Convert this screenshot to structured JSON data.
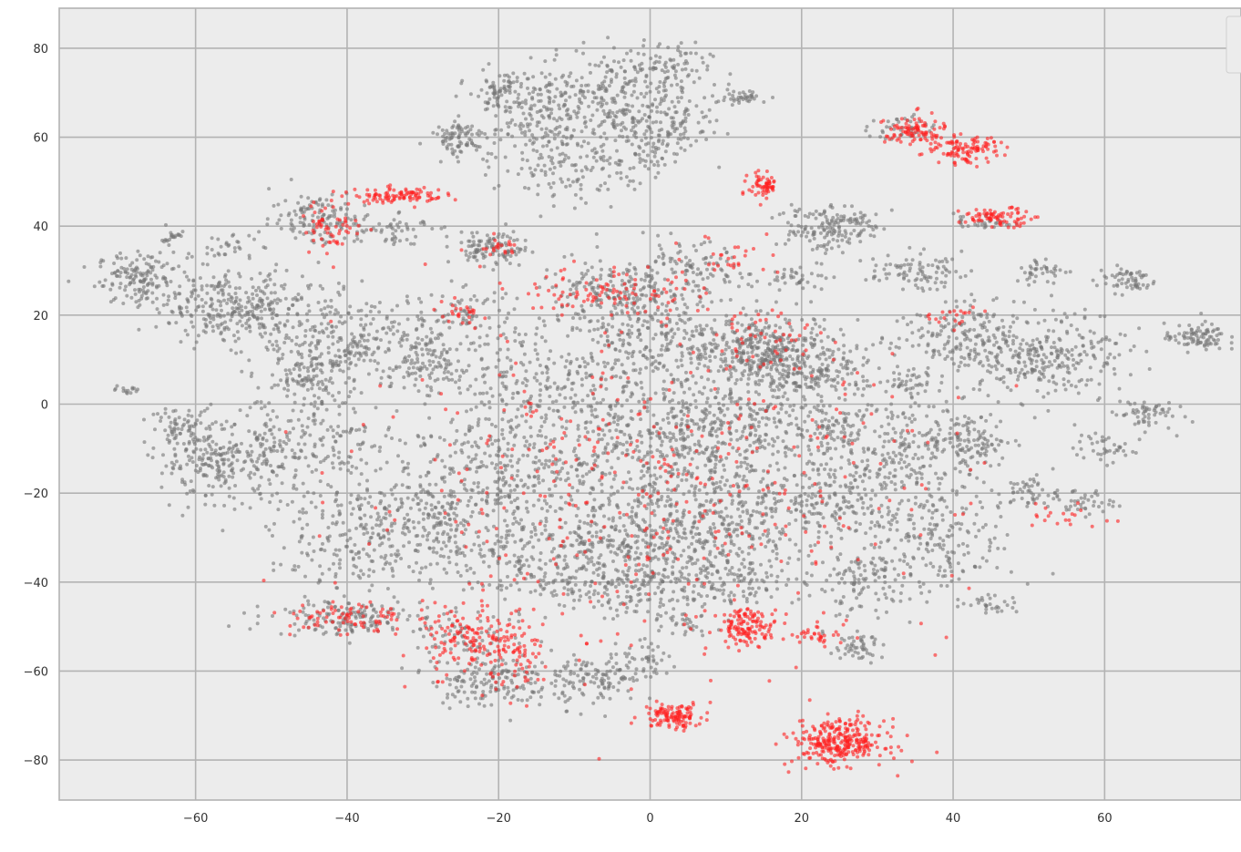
{
  "chart_data": {
    "type": "scatter",
    "title": "",
    "xlabel": "",
    "ylabel": "",
    "xlim": [
      -78,
      78
    ],
    "ylim": [
      -89,
      89
    ],
    "x_ticks": [
      -60,
      -40,
      -20,
      0,
      20,
      40,
      60
    ],
    "y_ticks": [
      -80,
      -60,
      -40,
      -20,
      0,
      20,
      40,
      60,
      80
    ],
    "grid": true,
    "legend": {
      "placement": "top-right",
      "entries": []
    },
    "point_alpha": 0.6,
    "series": [
      {
        "color": "#777777",
        "marker_radius": 2,
        "points_total": 9500,
        "clusters": [
          {
            "cx": -67,
            "cy": 28,
            "sx": 3,
            "sy": 3,
            "n": 160
          },
          {
            "cx": -55,
            "cy": 22,
            "sx": 5,
            "sy": 4,
            "n": 300
          },
          {
            "cx": -63,
            "cy": 38,
            "sx": 1,
            "sy": 1,
            "n": 20
          },
          {
            "cx": -56,
            "cy": 35,
            "sx": 2,
            "sy": 1.5,
            "n": 30
          },
          {
            "cx": -69,
            "cy": 3,
            "sx": 0.8,
            "sy": 0.5,
            "n": 15
          },
          {
            "cx": -57,
            "cy": -13,
            "sx": 4,
            "sy": 4,
            "n": 230
          },
          {
            "cx": -62,
            "cy": -5,
            "sx": 2,
            "sy": 2,
            "n": 60
          },
          {
            "cx": -44,
            "cy": 42,
            "sx": 3,
            "sy": 3,
            "n": 120
          },
          {
            "cx": -40,
            "cy": 14,
            "sx": 6,
            "sy": 5,
            "n": 280
          },
          {
            "cx": -45,
            "cy": 5,
            "sx": 3,
            "sy": 3,
            "n": 100
          },
          {
            "cx": -45,
            "cy": -10,
            "sx": 6,
            "sy": 6,
            "n": 220
          },
          {
            "cx": -38,
            "cy": -30,
            "sx": 6,
            "sy": 6,
            "n": 230
          },
          {
            "cx": -40,
            "cy": -48,
            "sx": 5,
            "sy": 2,
            "n": 150
          },
          {
            "cx": -35,
            "cy": 40,
            "sx": 3,
            "sy": 2,
            "n": 60
          },
          {
            "cx": -30,
            "cy": 10,
            "sx": 3,
            "sy": 4,
            "n": 100
          },
          {
            "cx": -27,
            "cy": -25,
            "sx": 5,
            "sy": 6,
            "n": 200
          },
          {
            "cx": -22,
            "cy": 35,
            "sx": 2,
            "sy": 2,
            "n": 60
          },
          {
            "cx": -25,
            "cy": 20,
            "sx": 3,
            "sy": 3,
            "n": 60
          },
          {
            "cx": -25,
            "cy": 60,
            "sx": 2,
            "sy": 2,
            "n": 90
          },
          {
            "cx": -20,
            "cy": 70,
            "sx": 2,
            "sy": 2,
            "n": 70
          },
          {
            "cx": -15,
            "cy": 65,
            "sx": 3,
            "sy": 5,
            "n": 140
          },
          {
            "cx": -10,
            "cy": 55,
            "sx": 5,
            "sy": 5,
            "n": 160
          },
          {
            "cx": -5,
            "cy": 70,
            "sx": 5,
            "sy": 5,
            "n": 220
          },
          {
            "cx": 0,
            "cy": 60,
            "sx": 3,
            "sy": 5,
            "n": 120
          },
          {
            "cx": 2,
            "cy": 75,
            "sx": 3,
            "sy": 3,
            "n": 80
          },
          {
            "cx": 5,
            "cy": 62,
            "sx": 2,
            "sy": 3,
            "n": 40
          },
          {
            "cx": 12,
            "cy": 69,
            "sx": 2,
            "sy": 0.8,
            "n": 40
          },
          {
            "cx": -20,
            "cy": 35,
            "sx": 2,
            "sy": 2,
            "n": 50
          },
          {
            "cx": -15,
            "cy": 5,
            "sx": 8,
            "sy": 8,
            "n": 300
          },
          {
            "cx": -20,
            "cy": -15,
            "sx": 6,
            "sy": 6,
            "n": 230
          },
          {
            "cx": -15,
            "cy": -35,
            "sx": 7,
            "sy": 6,
            "n": 270
          },
          {
            "cx": -21,
            "cy": -62,
            "sx": 4,
            "sy": 3,
            "n": 160
          },
          {
            "cx": -25,
            "cy": -52,
            "sx": 3,
            "sy": 3,
            "n": 60
          },
          {
            "cx": -7,
            "cy": -62,
            "sx": 3,
            "sy": 3,
            "n": 120
          },
          {
            "cx": 0,
            "cy": -58,
            "sx": 2,
            "sy": 2,
            "n": 40
          },
          {
            "cx": -5,
            "cy": 25,
            "sx": 5,
            "sy": 4,
            "n": 180
          },
          {
            "cx": 0,
            "cy": 15,
            "sx": 6,
            "sy": 6,
            "n": 250
          },
          {
            "cx": 0,
            "cy": -10,
            "sx": 7,
            "sy": 7,
            "n": 350
          },
          {
            "cx": 0,
            "cy": -30,
            "sx": 7,
            "sy": 6,
            "n": 350
          },
          {
            "cx": -3,
            "cy": -42,
            "sx": 4,
            "sy": 3,
            "n": 100
          },
          {
            "cx": 5,
            "cy": 30,
            "sx": 4,
            "sy": 3,
            "n": 100
          },
          {
            "cx": 15,
            "cy": 12,
            "sx": 5,
            "sy": 4,
            "n": 380
          },
          {
            "cx": 22,
            "cy": 7,
            "sx": 4,
            "sy": 3,
            "n": 160
          },
          {
            "cx": 10,
            "cy": -5,
            "sx": 6,
            "sy": 6,
            "n": 250
          },
          {
            "cx": 12,
            "cy": -25,
            "sx": 7,
            "sy": 6,
            "n": 300
          },
          {
            "cx": 10,
            "cy": -40,
            "sx": 5,
            "sy": 3,
            "n": 120
          },
          {
            "cx": 5,
            "cy": -49,
            "sx": 1.5,
            "sy": 1.5,
            "n": 30
          },
          {
            "cx": 22,
            "cy": 40,
            "sx": 3,
            "sy": 3,
            "n": 120
          },
          {
            "cx": 27,
            "cy": 40,
            "sx": 2,
            "sy": 2,
            "n": 40
          },
          {
            "cx": 20,
            "cy": 28,
            "sx": 2,
            "sy": 2,
            "n": 40
          },
          {
            "cx": 25,
            "cy": -5,
            "sx": 5,
            "sy": 4,
            "n": 150
          },
          {
            "cx": 25,
            "cy": -20,
            "sx": 5,
            "sy": 5,
            "n": 180
          },
          {
            "cx": 28,
            "cy": -40,
            "sx": 4,
            "sy": 4,
            "n": 120
          },
          {
            "cx": 27,
            "cy": -55,
            "sx": 2,
            "sy": 1.5,
            "n": 50
          },
          {
            "cx": 35,
            "cy": 30,
            "sx": 3,
            "sy": 2,
            "n": 90
          },
          {
            "cx": 33,
            "cy": 62,
            "sx": 2,
            "sy": 1.5,
            "n": 40
          },
          {
            "cx": 35,
            "cy": 5,
            "sx": 2,
            "sy": 1.5,
            "n": 40
          },
          {
            "cx": 35,
            "cy": -10,
            "sx": 5,
            "sy": 5,
            "n": 160
          },
          {
            "cx": 38,
            "cy": -30,
            "sx": 5,
            "sy": 6,
            "n": 200
          },
          {
            "cx": 40,
            "cy": 15,
            "sx": 4,
            "sy": 4,
            "n": 150
          },
          {
            "cx": 42,
            "cy": -8,
            "sx": 3,
            "sy": 3,
            "n": 100
          },
          {
            "cx": 48,
            "cy": 10,
            "sx": 4,
            "sy": 4,
            "n": 150
          },
          {
            "cx": 52,
            "cy": 30,
            "sx": 2,
            "sy": 1.5,
            "n": 40
          },
          {
            "cx": 55,
            "cy": 12,
            "sx": 4,
            "sy": 5,
            "n": 160
          },
          {
            "cx": 50,
            "cy": -20,
            "sx": 2,
            "sy": 2,
            "n": 50
          },
          {
            "cx": 57,
            "cy": -22,
            "sx": 2,
            "sy": 1.5,
            "n": 40
          },
          {
            "cx": 60,
            "cy": -10,
            "sx": 2,
            "sy": 1.5,
            "n": 40
          },
          {
            "cx": 65,
            "cy": -2,
            "sx": 2,
            "sy": 2,
            "n": 60
          },
          {
            "cx": 63,
            "cy": 28,
            "sx": 2,
            "sy": 1.5,
            "n": 60
          },
          {
            "cx": 72,
            "cy": 15,
            "sx": 2,
            "sy": 1.5,
            "n": 90
          },
          {
            "cx": 44,
            "cy": 41,
            "sx": 2,
            "sy": 1,
            "n": 30
          },
          {
            "cx": 45,
            "cy": -45,
            "sx": 2,
            "sy": 1,
            "n": 30
          }
        ]
      },
      {
        "color": "#ff1f1f",
        "marker_radius": 2,
        "points_total": 2100,
        "clusters": [
          {
            "cx": -42,
            "cy": 40,
            "sx": 2,
            "sy": 3,
            "n": 60
          },
          {
            "cx": -33,
            "cy": 47,
            "sx": 3,
            "sy": 0.9,
            "n": 100
          },
          {
            "cx": -40,
            "cy": -48,
            "sx": 4,
            "sy": 2,
            "n": 80
          },
          {
            "cx": -24,
            "cy": -53,
            "sx": 3,
            "sy": 4,
            "n": 130
          },
          {
            "cx": -17,
            "cy": -57,
            "sx": 2,
            "sy": 4,
            "n": 70
          },
          {
            "cx": -20,
            "cy": 35,
            "sx": 1.5,
            "sy": 1,
            "n": 20
          },
          {
            "cx": -25,
            "cy": 20,
            "sx": 2,
            "sy": 1.5,
            "n": 25
          },
          {
            "cx": 3,
            "cy": -70,
            "sx": 2,
            "sy": 1.5,
            "n": 120
          },
          {
            "cx": 25,
            "cy": -76,
            "sx": 3,
            "sy": 2.5,
            "n": 300
          },
          {
            "cx": 15,
            "cy": 49,
            "sx": 1,
            "sy": 1.5,
            "n": 60
          },
          {
            "cx": 35,
            "cy": 61,
            "sx": 2,
            "sy": 2,
            "n": 100
          },
          {
            "cx": 42,
            "cy": 57,
            "sx": 2,
            "sy": 1.5,
            "n": 100
          },
          {
            "cx": 46,
            "cy": 42,
            "sx": 2.5,
            "sy": 1,
            "n": 80
          },
          {
            "cx": 13,
            "cy": -50,
            "sx": 2,
            "sy": 2,
            "n": 130
          },
          {
            "cx": 22,
            "cy": -52,
            "sx": 1.5,
            "sy": 1,
            "n": 30
          },
          {
            "cx": 55,
            "cy": -25,
            "sx": 3,
            "sy": 1.5,
            "n": 20
          },
          {
            "cx": -5,
            "cy": 25,
            "sx": 6,
            "sy": 3,
            "n": 100
          },
          {
            "cx": 15,
            "cy": 15,
            "sx": 4,
            "sy": 4,
            "n": 50
          },
          {
            "cx": 0,
            "cy": -20,
            "sx": 20,
            "sy": 18,
            "n": 420
          },
          {
            "cx": 40,
            "cy": 20,
            "sx": 2,
            "sy": 1,
            "n": 20
          },
          {
            "cx": 10,
            "cy": 33,
            "sx": 4,
            "sy": 3,
            "n": 30
          }
        ]
      }
    ]
  }
}
